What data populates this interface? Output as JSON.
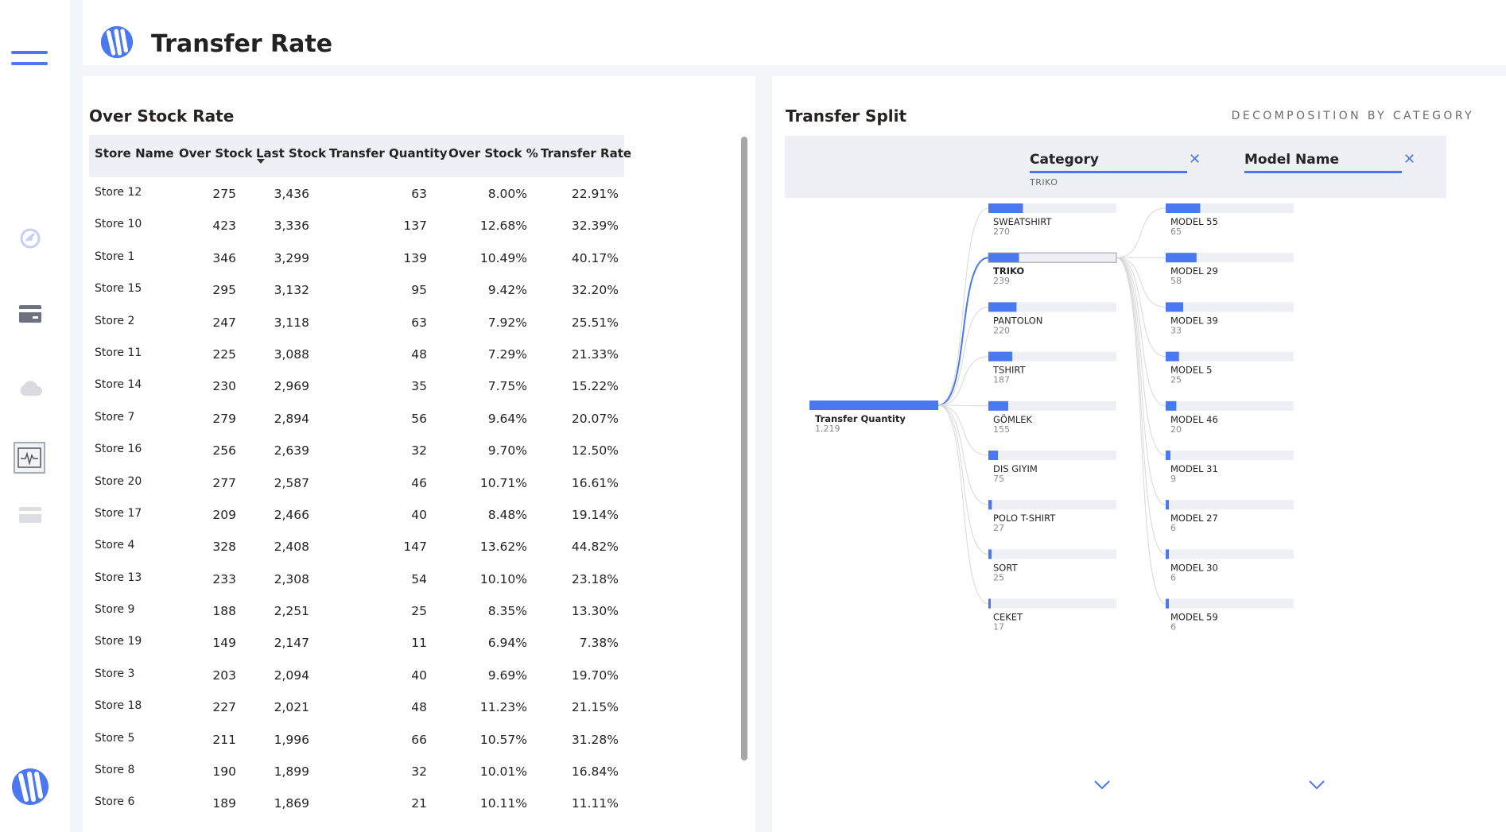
{
  "app": {
    "title": "Transfer Rate"
  },
  "colors": {
    "accent": "#4a78f0",
    "bar_track": "#eef0f6",
    "panel": "#ffffff",
    "bg": "#f4f5f9"
  },
  "sidebar": {
    "menu_icon": "hamburger-icon",
    "items": [
      {
        "icon": "gauge-icon",
        "active": false
      },
      {
        "icon": "card-icon",
        "active": false
      },
      {
        "icon": "cloud-icon",
        "active": false
      },
      {
        "icon": "pulse-chart-icon",
        "active": true
      },
      {
        "icon": "card-icon",
        "active": false
      }
    ],
    "logo_icon": "brand-logo-icon"
  },
  "left_panel": {
    "title": "Over Stock Rate",
    "columns": [
      "Store Name",
      "Over Stock",
      "Last Stock",
      "Transfer Quantity",
      "Over Stock %",
      "Transfer Rate"
    ],
    "sorted_column": "Last Stock",
    "sort_direction": "descending",
    "rows": [
      [
        "Store 12",
        "275",
        "3,436",
        "63",
        "8.00%",
        "22.91%"
      ],
      [
        "Store 10",
        "423",
        "3,336",
        "137",
        "12.68%",
        "32.39%"
      ],
      [
        "Store 1",
        "346",
        "3,299",
        "139",
        "10.49%",
        "40.17%"
      ],
      [
        "Store 15",
        "295",
        "3,132",
        "95",
        "9.42%",
        "32.20%"
      ],
      [
        "Store 2",
        "247",
        "3,118",
        "63",
        "7.92%",
        "25.51%"
      ],
      [
        "Store 11",
        "225",
        "3,088",
        "48",
        "7.29%",
        "21.33%"
      ],
      [
        "Store 14",
        "230",
        "2,969",
        "35",
        "7.75%",
        "15.22%"
      ],
      [
        "Store 7",
        "279",
        "2,894",
        "56",
        "9.64%",
        "20.07%"
      ],
      [
        "Store 16",
        "256",
        "2,639",
        "32",
        "9.70%",
        "12.50%"
      ],
      [
        "Store 20",
        "277",
        "2,587",
        "46",
        "10.71%",
        "16.61%"
      ],
      [
        "Store 17",
        "209",
        "2,466",
        "40",
        "8.48%",
        "19.14%"
      ],
      [
        "Store 4",
        "328",
        "2,408",
        "147",
        "13.62%",
        "44.82%"
      ],
      [
        "Store 13",
        "233",
        "2,308",
        "54",
        "10.10%",
        "23.18%"
      ],
      [
        "Store 9",
        "188",
        "2,251",
        "25",
        "8.35%",
        "13.30%"
      ],
      [
        "Store 19",
        "149",
        "2,147",
        "11",
        "6.94%",
        "7.38%"
      ],
      [
        "Store 3",
        "203",
        "2,094",
        "40",
        "9.69%",
        "19.70%"
      ],
      [
        "Store 18",
        "227",
        "2,021",
        "48",
        "11.23%",
        "21.15%"
      ],
      [
        "Store 5",
        "211",
        "1,996",
        "66",
        "10.57%",
        "31.28%"
      ],
      [
        "Store 8",
        "190",
        "1,899",
        "32",
        "10.01%",
        "16.84%"
      ],
      [
        "Store 6",
        "189",
        "1,869",
        "21",
        "10.11%",
        "11.11%"
      ]
    ]
  },
  "right_panel": {
    "title": "Transfer Split",
    "subtitle": "DECOMPOSITION BY CATEGORY",
    "levels": [
      {
        "title": "Category",
        "selected": "TRIKO",
        "close_icon": "close-icon"
      },
      {
        "title": "Model Name",
        "selected": "",
        "close_icon": "close-icon"
      }
    ],
    "root": {
      "label": "Transfer Quantity",
      "value": "1,219",
      "amount": 1219
    },
    "categories": [
      {
        "label": "SWEATSHIRT",
        "value": "270",
        "amount": 270,
        "selected": false
      },
      {
        "label": "TRIKO",
        "value": "239",
        "amount": 239,
        "selected": true
      },
      {
        "label": "PANTOLON",
        "value": "220",
        "amount": 220,
        "selected": false
      },
      {
        "label": "TSHIRT",
        "value": "187",
        "amount": 187,
        "selected": false
      },
      {
        "label": "GÖMLEK",
        "value": "155",
        "amount": 155,
        "selected": false
      },
      {
        "label": "DIS GIYIM",
        "value": "75",
        "amount": 75,
        "selected": false
      },
      {
        "label": "POLO T-SHIRT",
        "value": "27",
        "amount": 27,
        "selected": false
      },
      {
        "label": "SORT",
        "value": "25",
        "amount": 25,
        "selected": false
      },
      {
        "label": "CEKET",
        "value": "17",
        "amount": 17,
        "selected": false
      }
    ],
    "models": [
      {
        "label": "MODEL 55",
        "value": "65",
        "amount": 65
      },
      {
        "label": "MODEL 29",
        "value": "58",
        "amount": 58
      },
      {
        "label": "MODEL 39",
        "value": "33",
        "amount": 33
      },
      {
        "label": "MODEL 5",
        "value": "25",
        "amount": 25
      },
      {
        "label": "MODEL 46",
        "value": "20",
        "amount": 20
      },
      {
        "label": "MODEL 31",
        "value": "9",
        "amount": 9
      },
      {
        "label": "MODEL 27",
        "value": "6",
        "amount": 6
      },
      {
        "label": "MODEL 30",
        "value": "6",
        "amount": 6
      },
      {
        "label": "MODEL 59",
        "value": "6",
        "amount": 6
      }
    ],
    "more_icon": "chevron-down-icon"
  }
}
